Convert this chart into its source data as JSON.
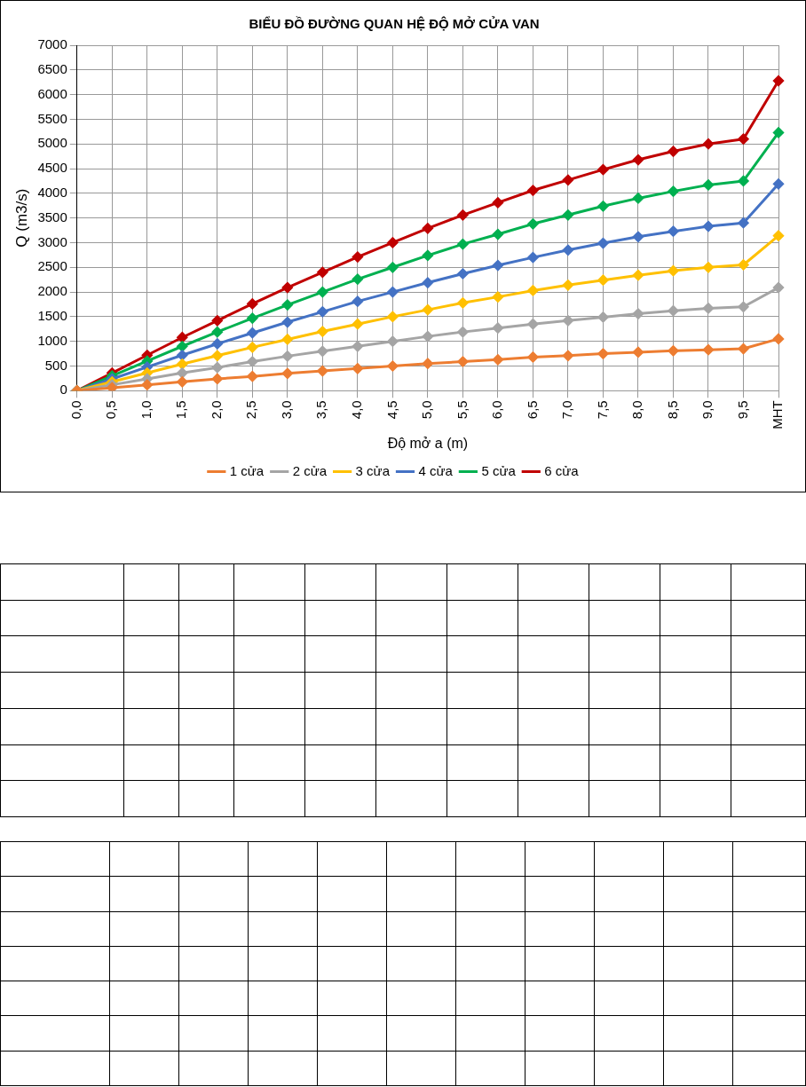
{
  "chart_data": {
    "type": "line",
    "title": "BIỂU ĐỒ ĐƯỜNG QUAN HỆ ĐỘ MỞ CỬA VAN",
    "xlabel": "Độ mở a (m)",
    "ylabel": "Q (m3/s)",
    "categories": [
      "0,0",
      "0,5",
      "1,0",
      "1,5",
      "2,0",
      "2,5",
      "3,0",
      "3,5",
      "4,0",
      "4,5",
      "5,0",
      "5,5",
      "6,0",
      "6,5",
      "7,0",
      "7,5",
      "8,0",
      "8,5",
      "9,0",
      "9,5",
      "MHT"
    ],
    "series": [
      {
        "name": "1 cửa",
        "color": "#ed7d31",
        "values": [
          0,
          60,
          120,
          180,
          240,
          290,
          350,
          400,
          450,
          500,
          550,
          590,
          630,
          680,
          710,
          750,
          780,
          810,
          830,
          850,
          1050
        ]
      },
      {
        "name": "2 cửa",
        "color": "#a5a5a5",
        "values": [
          0,
          120,
          240,
          360,
          470,
          590,
          700,
          800,
          900,
          1000,
          1100,
          1190,
          1270,
          1350,
          1420,
          1490,
          1560,
          1620,
          1670,
          1700,
          2090
        ]
      },
      {
        "name": "3 cửa",
        "color": "#ffc000",
        "values": [
          0,
          180,
          360,
          540,
          710,
          880,
          1040,
          1200,
          1350,
          1500,
          1640,
          1780,
          1900,
          2030,
          2140,
          2240,
          2340,
          2430,
          2500,
          2550,
          3140
        ]
      },
      {
        "name": "4 cửa",
        "color": "#4472c4",
        "values": [
          0,
          240,
          480,
          720,
          950,
          1170,
          1390,
          1600,
          1810,
          2000,
          2190,
          2370,
          2540,
          2700,
          2850,
          2990,
          3120,
          3230,
          3330,
          3400,
          4190
        ]
      },
      {
        "name": "5 cửa",
        "color": "#00b050",
        "values": [
          0,
          300,
          600,
          900,
          1190,
          1470,
          1740,
          2000,
          2260,
          2500,
          2740,
          2970,
          3170,
          3380,
          3560,
          3740,
          3900,
          4040,
          4170,
          4250,
          5230
        ]
      },
      {
        "name": "6 cửa",
        "color": "#c00000",
        "values": [
          0,
          360,
          720,
          1080,
          1420,
          1760,
          2090,
          2400,
          2710,
          3000,
          3290,
          3560,
          3810,
          4060,
          4270,
          4480,
          4680,
          4850,
          5000,
          5100,
          6280
        ]
      }
    ],
    "ylim": [
      0,
      7000
    ],
    "yticks": [
      0,
      500,
      1000,
      1500,
      2000,
      2500,
      3000,
      3500,
      4000,
      4500,
      5000,
      5500,
      6000,
      6500,
      7000
    ],
    "grid": true,
    "legend": "bottom",
    "marker": "diamond",
    "line_style": "solid"
  }
}
